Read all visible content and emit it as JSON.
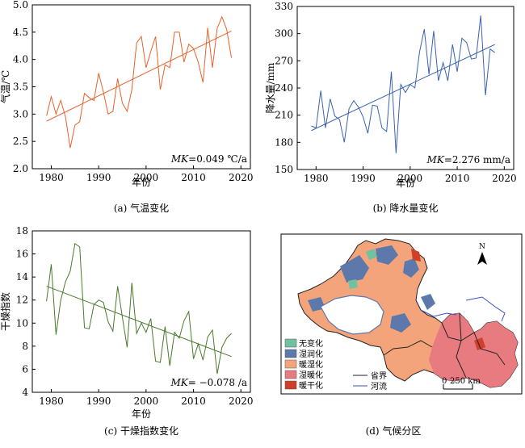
{
  "chart_data": [
    {
      "type": "line",
      "panel": "a",
      "caption": "(a) 气温变化",
      "ylabel": "气温/℃",
      "xlabel": "年份",
      "ylim": [
        2.0,
        5.0
      ],
      "yticks": [
        "2.0",
        "2.5",
        "3.0",
        "3.5",
        "4.0",
        "4.5",
        "5.0"
      ],
      "xlim": [
        1976,
        2022
      ],
      "xticks": [
        "1980",
        "1990",
        "2000",
        "2010",
        "2020"
      ],
      "annotation_var": "MK",
      "annotation_value": "=0.049 ℃/a",
      "series": [
        {
          "x": [
            1979,
            1980,
            1981,
            1982,
            1983,
            1984,
            1985,
            1986,
            1987,
            1988,
            1989,
            1990,
            1991,
            1992,
            1993,
            1994,
            1995,
            1996,
            1997,
            1998,
            1999,
            2000,
            2001,
            2002,
            2003,
            2004,
            2005,
            2006,
            2007,
            2008,
            2009,
            2010,
            2011,
            2012,
            2013,
            2014,
            2015,
            2016,
            2017,
            2018
          ],
          "y": [
            2.97,
            3.32,
            3.0,
            3.25,
            2.95,
            2.38,
            2.8,
            2.86,
            3.38,
            3.3,
            3.25,
            3.75,
            3.4,
            3.0,
            3.05,
            3.65,
            3.2,
            3.05,
            3.45,
            4.3,
            4.42,
            3.85,
            4.15,
            4.42,
            3.45,
            3.9,
            3.85,
            4.5,
            4.5,
            3.95,
            4.28,
            4.2,
            3.95,
            3.58,
            4.58,
            3.85,
            4.57,
            4.78,
            4.55,
            4.03
          ],
          "color": "#e8622c"
        }
      ],
      "trend": {
        "x": [
          1979,
          2018
        ],
        "y": [
          2.87,
          4.52
        ],
        "color": "#e8622c"
      }
    },
    {
      "type": "line",
      "panel": "b",
      "caption": "(b) 降水量变化",
      "ylabel": "降水量/mm",
      "xlabel": "年份",
      "ylim": [
        150,
        330
      ],
      "yticks": [
        "150",
        "180",
        "210",
        "240",
        "270",
        "300",
        "330"
      ],
      "xlim": [
        1976,
        2022
      ],
      "xticks": [
        "1980",
        "1990",
        "2000",
        "2010",
        "2020"
      ],
      "annotation_var": "MK",
      "annotation_value": "=2.276 mm/a",
      "series": [
        {
          "x": [
            1979,
            1980,
            1981,
            1982,
            1983,
            1984,
            1985,
            1986,
            1987,
            1988,
            1989,
            1990,
            1991,
            1992,
            1993,
            1994,
            1995,
            1996,
            1997,
            1998,
            1999,
            2000,
            2001,
            2002,
            2003,
            2004,
            2005,
            2006,
            2007,
            2008,
            2009,
            2010,
            2011,
            2012,
            2013,
            2014,
            2015,
            2016,
            2017,
            2018
          ],
          "y": [
            198,
            196,
            237,
            196,
            228,
            209,
            205,
            180,
            217,
            226,
            219,
            208,
            190,
            221,
            220,
            196,
            192,
            258,
            168,
            244,
            235,
            244,
            240,
            280,
            305,
            255,
            303,
            248,
            268,
            248,
            288,
            258,
            295,
            290,
            272,
            273,
            320,
            232,
            283,
            279
          ],
          "color": "#3a63b0"
        }
      ],
      "trend": {
        "x": [
          1979,
          2018
        ],
        "y": [
          193,
          288
        ],
        "color": "#3a63b0"
      }
    },
    {
      "type": "line",
      "panel": "c",
      "caption": "(c) 干燥指数变化",
      "ylabel": "干燥指数",
      "xlabel": "年份",
      "ylim": [
        4,
        18
      ],
      "yticks": [
        "4",
        "6",
        "8",
        "10",
        "12",
        "14",
        "16",
        "18"
      ],
      "xlim": [
        1976,
        2022
      ],
      "xticks": [
        "1980",
        "1990",
        "2000",
        "2010",
        "2020"
      ],
      "annotation_var": "MK",
      "annotation_value": "= −0.078 /a",
      "series": [
        {
          "x": [
            1979,
            1980,
            1981,
            1982,
            1983,
            1984,
            1985,
            1986,
            1987,
            1988,
            1989,
            1990,
            1991,
            1992,
            1993,
            1994,
            1995,
            1996,
            1997,
            1998,
            1999,
            2000,
            2001,
            2002,
            2003,
            2004,
            2005,
            2006,
            2007,
            2008,
            2009,
            2010,
            2011,
            2012,
            2013,
            2014,
            2015,
            2016,
            2017,
            2018
          ],
          "y": [
            11.9,
            15.1,
            9.0,
            12.0,
            13.6,
            14.5,
            16.9,
            16.6,
            9.6,
            9.5,
            11.6,
            12.0,
            11.8,
            10.1,
            9.3,
            13.2,
            10.5,
            7.9,
            13.5,
            9.1,
            10.0,
            9.2,
            10.4,
            6.7,
            6.6,
            9.7,
            6.3,
            9.2,
            8.7,
            10.2,
            11.0,
            6.9,
            8.2,
            6.8,
            8.8,
            9.4,
            5.6,
            7.9,
            8.7,
            9.1
          ],
          "color": "#4a7a2c"
        }
      ],
      "trend": {
        "x": [
          1979,
          2018
        ],
        "y": [
          13.2,
          7.1
        ],
        "color": "#4a7a2c"
      }
    }
  ],
  "map": {
    "caption": "(d) 气候分区",
    "north_label": "N",
    "legend": [
      {
        "label": "无变化",
        "color": "#6fc1a0"
      },
      {
        "label": "湿润化",
        "color": "#5d78aa"
      },
      {
        "label": "暖湿化",
        "color": "#f4a47b"
      },
      {
        "label": "湿暖化",
        "color": "#e77b7f"
      },
      {
        "label": "暖干化",
        "color": "#cf3f2a"
      }
    ],
    "line_legend": [
      {
        "label": "省界",
        "color": "#222222"
      },
      {
        "label": "河流",
        "color": "#3a4fb8"
      }
    ],
    "scale_zero": "0",
    "scale_label": "250 km"
  }
}
